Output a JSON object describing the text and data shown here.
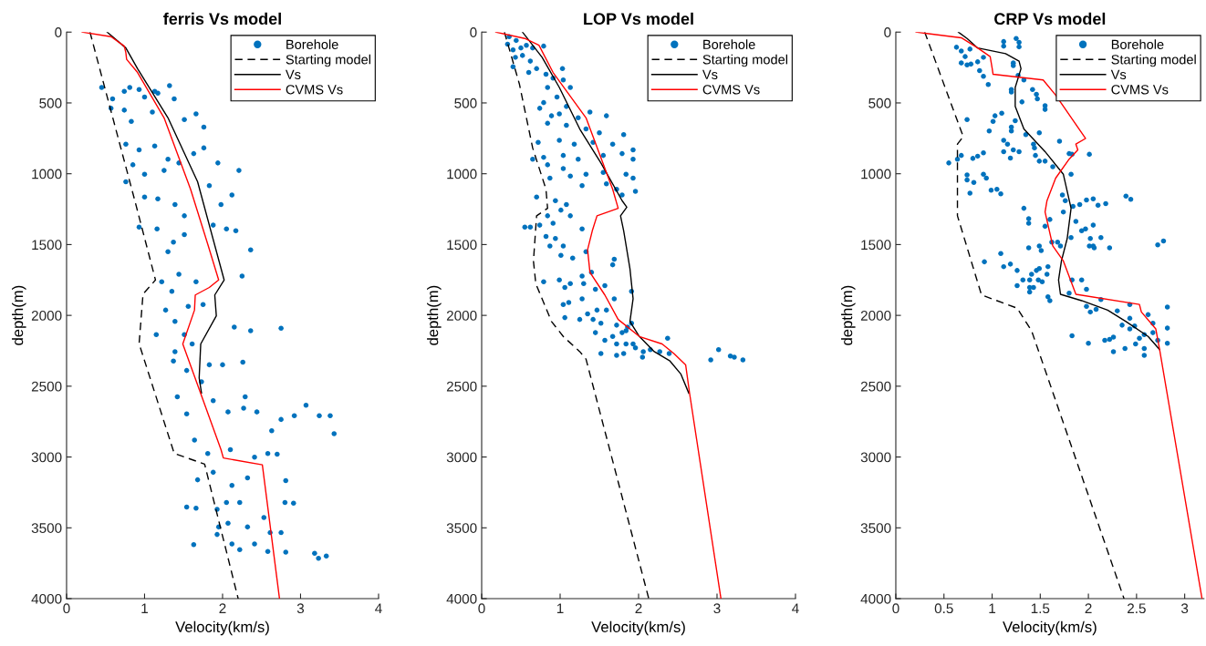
{
  "chart_data": [
    {
      "type": "scatter",
      "title": "ferris Vs model",
      "xlabel": "Velocity(km/s)",
      "ylabel": "depth(m)",
      "xlim": [
        0,
        4
      ],
      "xticks": [
        0,
        1,
        2,
        3,
        4
      ],
      "ylim": [
        4000,
        0
      ],
      "yticks": [
        0,
        500,
        1000,
        1500,
        2000,
        2500,
        3000,
        3500,
        4000
      ],
      "legend": "top right",
      "grid": false,
      "series": [
        {
          "name": "Borehole",
          "marker": "circle",
          "color": "#0072bd",
          "x": [
            0.45,
            0.57,
            0.59,
            0.74,
            0.81,
            0.93,
            1.0,
            1.13,
            1.17,
            1.32,
            1.38,
            0.74,
            0.83,
            1.1,
            1.51,
            1.66,
            1.76,
            0.76,
            0.93,
            1.13,
            1.3,
            0.85,
            1.0,
            1.25,
            1.44,
            1.63,
            1.76,
            1.94,
            2.21,
            0.76,
            1.0,
            1.17,
            1.39,
            1.51,
            1.83,
            2.12,
            1.98,
            0.93,
            1.16,
            1.37,
            1.51,
            1.88,
            2.05,
            2.17,
            2.36,
            2.25,
            1.3,
            1.22,
            1.44,
            1.66,
            1.35,
            1.27,
            1.56,
            1.75,
            1.15,
            1.39,
            1.51,
            2.15,
            2.36,
            2.75,
            1.39,
            1.61,
            1.37,
            1.54,
            1.83,
            2.0,
            2.26,
            1.42,
            1.54,
            1.73,
            1.88,
            2.07,
            2.27,
            2.44,
            2.29,
            3.07,
            3.24,
            3.38,
            3.43,
            2.92,
            2.75,
            2.63,
            1.64,
            1.81,
            2.1,
            2.41,
            2.58,
            2.7,
            1.68,
            1.88,
            2.12,
            2.32,
            2.81,
            1.54,
            1.66,
            1.93,
            2.05,
            2.22,
            2.8,
            2.91,
            2.07,
            2.32,
            2.53,
            2.61,
            2.75,
            1.63,
            1.93,
            2.12,
            2.22,
            2.41,
            2.58,
            2.81,
            3.18,
            3.23,
            3.33,
            1.95
          ],
          "values": [
            391,
            538,
            471,
            418,
            391,
            405,
            458,
            418,
            431,
            378,
            471,
            551,
            631,
            565,
            618,
            578,
            671,
            791,
            831,
            804,
            897,
            937,
            1004,
            977,
            924,
            858,
            818,
            924,
            977,
            1057,
            1164,
            1177,
            1217,
            1297,
            1084,
            1150,
            1217,
            1377,
            1390,
            1483,
            1430,
            1363,
            1390,
            1403,
            1537,
            1723,
            1550,
            1763,
            1710,
            1763,
            1830,
            1963,
            1936,
            1923,
            2136,
            2043,
            2136,
            2083,
            2109,
            2091,
            2256,
            2202,
            2322,
            2389,
            2349,
            2349,
            2330,
            2575,
            2695,
            2469,
            2602,
            2682,
            2655,
            2682,
            2575,
            2634,
            2708,
            2708,
            2836,
            2708,
            2735,
            2815,
            2881,
            2975,
            2948,
            3001,
            2975,
            2980,
            3161,
            3108,
            3201,
            3148,
            3167,
            3353,
            3361,
            3369,
            3321,
            3321,
            3321,
            3326,
            3467,
            3494,
            3427,
            3534,
            3534,
            3619,
            3547,
            3614,
            3654,
            3614,
            3667,
            3672,
            3680,
            3715,
            3699,
            3494
          ]
        },
        {
          "name": "Starting model",
          "type": "line",
          "line_style": "dashed",
          "marker": "none",
          "color": "#000000",
          "x": [
            0.3,
            0.88,
            1.14,
            0.98,
            0.93,
            1.38,
            1.77,
            2.2
          ],
          "values": [
            0,
            1200,
            1750,
            1850,
            2200,
            2975,
            3050,
            4000
          ]
        },
        {
          "name": "Vs",
          "type": "line",
          "line_style": "solid",
          "marker": "none",
          "color": "#000000",
          "x": [
            0.52,
            0.76,
            0.91,
            1.3,
            1.68,
            2.02,
            1.9,
            1.92,
            1.72,
            1.7,
            1.73
          ],
          "values": [
            0,
            112,
            258,
            605,
            1057,
            1750,
            1856,
            2003,
            2202,
            2442,
            2549
          ]
        },
        {
          "name": "CVMS Vs",
          "type": "line",
          "line_style": "solid",
          "marker": "none",
          "color": "#ff0000",
          "x": [
            0.2,
            0.57,
            0.74,
            0.76,
            0.77,
            0.91,
            1.25,
            1.59,
            1.81,
            1.95,
            1.83,
            1.65,
            1.64,
            1.49,
            1.98,
            2.01,
            2.51,
            2.73
          ],
          "values": [
            0,
            32,
            99,
            146,
            192,
            285,
            605,
            1110,
            1497,
            1750,
            1803,
            1856,
            1963,
            2202,
            2948,
            3007,
            3055,
            4000
          ]
        }
      ]
    },
    {
      "type": "scatter",
      "title": "LOP Vs model",
      "xlabel": "Velocity(km/s)",
      "ylabel": "depth(m)",
      "xlim": [
        0,
        4
      ],
      "xticks": [
        0,
        1,
        2,
        3,
        4
      ],
      "ylim": [
        4000,
        0
      ],
      "yticks": [
        0,
        500,
        1000,
        1500,
        2000,
        2500,
        3000,
        3500,
        4000
      ],
      "legend": "top right",
      "grid": false,
      "series": [
        {
          "name": "Borehole",
          "marker": "circle",
          "color": "#0072bd",
          "x": [
            0.35,
            0.44,
            0.33,
            0.4,
            0.5,
            0.57,
            0.65,
            0.79,
            0.43,
            0.52,
            0.62,
            0.4,
            0.7,
            0.6,
            0.82,
            1.03,
            0.91,
            1.04,
            0.84,
            0.96,
            1.13,
            0.79,
            1.08,
            0.74,
            0.89,
            0.99,
            1.23,
            1.38,
            1.59,
            0.84,
            1.08,
            1.33,
            1.5,
            1.81,
            0.99,
            1.18,
            1.42,
            1.67,
            1.93,
            0.72,
            0.79,
            1.04,
            1.23,
            1.55,
            1.79,
            0.65,
            1.93,
            0.84,
            1.04,
            1.13,
            1.33,
            1.55,
            1.84,
            1.93,
            0.87,
            1.28,
            1.59,
            1.72,
            1.96,
            1.79,
            0.7,
            0.94,
            1.08,
            1.01,
            1.13,
            0.84,
            0.91,
            1.28,
            0.74,
            0.55,
            0.62,
            0.82,
            0.94,
            1.04,
            0.87,
            1.01,
            1.16,
            1.33,
            1.69,
            1.67,
            0.79,
            0.99,
            1.06,
            1.13,
            1.28,
            1.4,
            1.3,
            1.45,
            1.57,
            1.69,
            1.91,
            1.04,
            1.11,
            1.06,
            1.25,
            1.35,
            1.42,
            1.52,
            1.59,
            1.45,
            1.57,
            1.67,
            1.79,
            1.84,
            1.91,
            1.86,
            1.72,
            1.84,
            1.93,
            1.52,
            1.72,
            1.81,
            2.06,
            2.15,
            2.27,
            2.37,
            2.39,
            2.05,
            2.92,
            3.02,
            3.17,
            3.33,
            3.22,
            1.96,
            1.72,
            1.28,
            1.47
          ],
          "values": [
            32,
            59,
            85,
            125,
            112,
            93,
            112,
            99,
            178,
            165,
            205,
            245,
            258,
            285,
            298,
            258,
            325,
            338,
            391,
            458,
            391,
            498,
            525,
            538,
            591,
            578,
            605,
            565,
            591,
            644,
            658,
            684,
            711,
            724,
            764,
            791,
            778,
            791,
            831,
            778,
            884,
            871,
            897,
            871,
            858,
            897,
            897,
            937,
            964,
            1017,
            1004,
            991,
            1004,
            1031,
            1031,
            1084,
            1071,
            1110,
            1124,
            1150,
            1164,
            1190,
            1217,
            1257,
            1297,
            1297,
            1350,
            1390,
            1363,
            1377,
            1377,
            1443,
            1457,
            1510,
            1510,
            1576,
            1595,
            1550,
            1603,
            1643,
            1763,
            1750,
            1803,
            1776,
            1723,
            1696,
            1776,
            1816,
            1790,
            1883,
            1830,
            1923,
            1909,
            2016,
            2029,
            1989,
            2029,
            2056,
            1963,
            2122,
            2176,
            2149,
            2122,
            2109,
            2056,
            2083,
            2202,
            2202,
            2202,
            2269,
            2282,
            2269,
            2256,
            2242,
            2256,
            2162,
            2269,
            2295,
            2314,
            2242,
            2287,
            2314,
            2295,
            2229,
            2069,
            1883,
            1963
          ]
        },
        {
          "name": "Starting model",
          "type": "line",
          "line_style": "dashed",
          "marker": "none",
          "color": "#000000",
          "x": [
            0.29,
            0.48,
            0.65,
            0.82,
            0.84,
            0.7,
            0.66,
            0.69,
            0.89,
            1.04,
            1.25,
            1.33,
            2.13
          ],
          "values": [
            0,
            365,
            818,
            1110,
            1244,
            1297,
            1617,
            1776,
            2043,
            2149,
            2256,
            2309,
            4000
          ]
        },
        {
          "name": "Vs",
          "type": "line",
          "line_style": "solid",
          "marker": "none",
          "color": "#000000",
          "x": [
            0.52,
            0.77,
            0.99,
            1.25,
            1.52,
            1.79,
            1.85,
            1.77,
            1.81,
            1.89,
            1.93,
            1.89,
            2.01,
            2.2,
            2.4,
            2.54,
            2.64
          ],
          "values": [
            0,
            178,
            391,
            684,
            924,
            1190,
            1236,
            1297,
            1403,
            1670,
            1883,
            2043,
            2149,
            2256,
            2322,
            2415,
            2549
          ]
        },
        {
          "name": "CVMS Vs",
          "type": "line",
          "line_style": "solid",
          "marker": "none",
          "color": "#ff0000",
          "x": [
            0.18,
            0.55,
            0.73,
            0.91,
            1.33,
            1.67,
            1.74,
            1.47,
            1.41,
            1.35,
            1.38,
            1.57,
            1.74,
            2.01,
            2.3,
            2.45,
            2.6,
            2.65,
            3.05
          ],
          "values": [
            0,
            45,
            93,
            285,
            605,
            1110,
            1244,
            1297,
            1403,
            1537,
            1696,
            1856,
            2029,
            2149,
            2202,
            2269,
            2349,
            2549,
            4000
          ]
        }
      ]
    },
    {
      "type": "scatter",
      "title": "CRP Vs model",
      "xlabel": "Velocity(km/s)",
      "ylabel": "depth(m)",
      "xlim": [
        0,
        3.2
      ],
      "xticks": [
        0,
        0.5,
        1,
        1.5,
        2,
        2.5,
        3
      ],
      "ylim": [
        4000,
        0
      ],
      "yticks": [
        0,
        500,
        1000,
        1500,
        2000,
        2500,
        3000,
        3500,
        4000
      ],
      "legend": "top right",
      "grid": false,
      "series": [
        {
          "name": "Borehole",
          "marker": "circle",
          "color": "#0072bd",
          "x": [
            0.63,
            0.68,
            0.77,
            0.72,
            0.68,
            0.74,
            0.78,
            0.85,
            0.91,
            0.87,
            0.91,
            0.96,
            1.12,
            1.12,
            1.25,
            1.28,
            1.28,
            1.22,
            1.22,
            1.27,
            1.33,
            1.2,
            1.2,
            1.42,
            1.46,
            1.47,
            1.55,
            1.55,
            1.31,
            0.74,
            1.03,
            1.01,
            0.97,
            1.1,
            1.2,
            1.2,
            1.24,
            1.35,
            1.12,
            1.16,
            1.12,
            1.22,
            1.28,
            1.19,
            1.49,
            1.43,
            1.44,
            1.45,
            1.49,
            1.55,
            1.63,
            1.7,
            1.8,
            1.83,
            2.01,
            1.82,
            0.55,
            0.64,
            0.68,
            0.8,
            0.85,
            0.91,
            0.74,
            0.74,
            0.81,
            0.77,
            0.91,
            0.94,
            0.99,
            1.05,
            1.09,
            1.33,
            1.38,
            1.38,
            1.55,
            1.6,
            1.74,
            1.73,
            1.76,
            1.84,
            1.91,
            1.98,
            2.05,
            2.1,
            2.18,
            1.87,
            1.93,
            1.97,
            2.05,
            2.02,
            2.13,
            2.05,
            2.01,
            2.06,
            2.22,
            1.82,
            1.62,
            1.68,
            1.71,
            2.39,
            2.44,
            2.72,
            2.78,
            1.38,
            1.49,
            1.51,
            0.92,
            1.09,
            1.12,
            1.19,
            1.26,
            1.32,
            1.26,
            1.39,
            1.41,
            1.46,
            1.49,
            1.48,
            1.52,
            1.58,
            1.57,
            1.39,
            1.43,
            1.39,
            1.58,
            1.6,
            1.8,
            1.83,
            1.93,
            1.98,
            1.98,
            2.02,
            2.08,
            2.13,
            2.3,
            2.35,
            2.43,
            2.43,
            2.43,
            2.48,
            2.62,
            2.67,
            2.82,
            2.82,
            2.82,
            2.72,
            2.67,
            2.58,
            2.53,
            2.49,
            2.38,
            2.26,
            2.26,
            2.22,
            2.17,
            2.58,
            2.58,
            1.83,
            2.0
          ],
          "values": [
            107,
            133,
            120,
            173,
            218,
            232,
            226,
            210,
            178,
            272,
            312,
            370,
            67,
            99,
            45,
            72,
            104,
            218,
            237,
            306,
            338,
            405,
            423,
            405,
            439,
            471,
            519,
            546,
            493,
            618,
            591,
            631,
            698,
            573,
            671,
            698,
            626,
            724,
            764,
            791,
            844,
            831,
            844,
            889,
            711,
            791,
            818,
            871,
            911,
            911,
            951,
            770,
            858,
            863,
            863,
            1004,
            924,
            897,
            871,
            892,
            876,
            852,
            1009,
            1044,
            1062,
            1137,
            1004,
            1031,
            1116,
            1110,
            1142,
            1244,
            1350,
            1318,
            1371,
            1323,
            1270,
            1150,
            1190,
            1230,
            1217,
            1185,
            1177,
            1222,
            1211,
            1337,
            1403,
            1390,
            1363,
            1457,
            1451,
            1510,
            1510,
            1523,
            1523,
            1451,
            1483,
            1483,
            1510,
            1158,
            1180,
            1502,
            1475,
            1523,
            1510,
            1542,
            1622,
            1563,
            1656,
            1638,
            1683,
            1750,
            1790,
            1750,
            1710,
            1683,
            1670,
            1750,
            1763,
            1656,
            1710,
            1803,
            1803,
            1835,
            1869,
            1896,
            1843,
            1750,
            1750,
            1816,
            1936,
            1976,
            1957,
            1888,
            1968,
            2069,
            1923,
            2021,
            2096,
            2075,
            1995,
            2056,
            1941,
            2090,
            2197,
            2176,
            2122,
            2136,
            2162,
            2202,
            2234,
            2256,
            2154,
            2170,
            2176,
            2234,
            2282,
            2144,
            2197
          ]
        },
        {
          "name": "Starting model",
          "type": "line",
          "line_style": "dashed",
          "marker": "none",
          "color": "#000000",
          "x": [
            0.3,
            0.7,
            0.64,
            0.64,
            0.89,
            1.26,
            1.41,
            2.37
          ],
          "values": [
            0,
            738,
            791,
            1297,
            1856,
            1949,
            2109,
            4000
          ]
        },
        {
          "name": "Vs",
          "type": "line",
          "line_style": "solid",
          "marker": "none",
          "color": "#000000",
          "x": [
            0.65,
            0.74,
            0.85,
            1.14,
            1.28,
            1.3,
            1.24,
            1.24,
            1.33,
            1.55,
            1.74,
            1.82,
            1.78,
            1.72,
            1.69,
            1.71,
            1.93,
            2.2,
            2.39,
            2.62,
            2.74
          ],
          "values": [
            0,
            45,
            112,
            152,
            205,
            258,
            391,
            525,
            684,
            844,
            1004,
            1244,
            1457,
            1616,
            1750,
            1851,
            1896,
            1963,
            2043,
            2149,
            2242
          ]
        },
        {
          "name": "CVMS Vs",
          "type": "line",
          "line_style": "solid",
          "marker": "none",
          "color": "#ff0000",
          "x": [
            0.21,
            0.68,
            0.85,
            0.98,
            1.0,
            1.01,
            1.53,
            1.66,
            1.97,
            1.87,
            1.89,
            1.8,
            1.66,
            1.57,
            1.55,
            1.63,
            1.74,
            1.87,
            2.53,
            2.55,
            2.7,
            2.74,
            3.18
          ],
          "values": [
            0,
            40,
            112,
            173,
            253,
            298,
            338,
            445,
            751,
            791,
            831,
            897,
            1031,
            1190,
            1270,
            1510,
            1616,
            1851,
            1923,
            1976,
            2096,
            2242,
            4000
          ]
        }
      ]
    }
  ]
}
